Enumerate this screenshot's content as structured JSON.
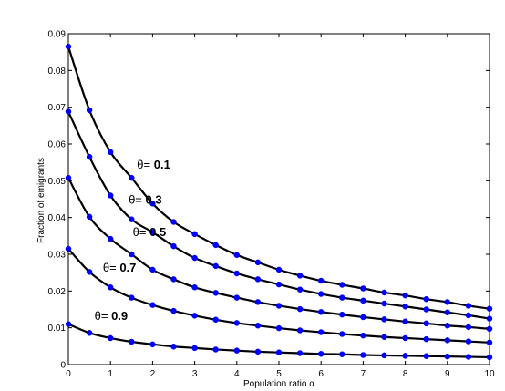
{
  "colors": {
    "curve": "#000000",
    "marker": "#0000ff",
    "axis": "#000000"
  },
  "chart_data": {
    "type": "line",
    "title": "",
    "xlabel": "Population ratio α",
    "ylabel": "Fraction of emigrants",
    "xlim": [
      0,
      10
    ],
    "ylim": [
      0,
      0.09
    ],
    "x_ticks": [
      "0",
      "1",
      "2",
      "3",
      "4",
      "5",
      "6",
      "7",
      "8",
      "9",
      "10"
    ],
    "y_ticks": [
      "0",
      "0.01",
      "0.02",
      "0.03",
      "0.04",
      "0.05",
      "0.06",
      "0.07",
      "0.08",
      "0.09"
    ],
    "grid": false,
    "legend": "none",
    "x": [
      0,
      0.5,
      1,
      1.5,
      2,
      2.5,
      3,
      3.5,
      4,
      4.5,
      5,
      5.5,
      6,
      6.5,
      7,
      7.5,
      8,
      8.5,
      9,
      9.5,
      10
    ],
    "series": [
      {
        "name": "θ= 0.1",
        "label_prefix": "θ=",
        "label_value": "0.1",
        "values": [
          0.0865,
          0.0692,
          0.0578,
          0.0508,
          0.0438,
          0.0388,
          0.0355,
          0.0325,
          0.0298,
          0.0278,
          0.0258,
          0.0242,
          0.0228,
          0.0217,
          0.0207,
          0.0196,
          0.0188,
          0.0178,
          0.017,
          0.016,
          0.0152
        ]
      },
      {
        "name": "θ= 0.3",
        "label_prefix": "θ=",
        "label_value": "0.3",
        "values": [
          0.0688,
          0.0565,
          0.046,
          0.0395,
          0.036,
          0.0322,
          0.029,
          0.0268,
          0.0248,
          0.0232,
          0.0218,
          0.0204,
          0.0192,
          0.0182,
          0.0174,
          0.0166,
          0.0158,
          0.015,
          0.0142,
          0.0134,
          0.0125
        ]
      },
      {
        "name": "θ= 0.5",
        "label_prefix": "θ=",
        "label_value": "0.5",
        "values": [
          0.0508,
          0.0402,
          0.0342,
          0.03,
          0.0258,
          0.0232,
          0.021,
          0.0195,
          0.0182,
          0.017,
          0.016,
          0.0151,
          0.0143,
          0.0136,
          0.0129,
          0.0123,
          0.0117,
          0.0112,
          0.0106,
          0.0102,
          0.0097
        ]
      },
      {
        "name": "θ= 0.7",
        "label_prefix": "θ=",
        "label_value": "0.7",
        "values": [
          0.0315,
          0.0252,
          0.021,
          0.0182,
          0.0162,
          0.0146,
          0.0133,
          0.0122,
          0.0113,
          0.0106,
          0.0099,
          0.0093,
          0.0088,
          0.0083,
          0.0079,
          0.0075,
          0.0072,
          0.0069,
          0.0066,
          0.0063,
          0.006
        ]
      },
      {
        "name": "θ= 0.9",
        "label_prefix": "θ=",
        "label_value": "0.9",
        "values": [
          0.011,
          0.0086,
          0.0072,
          0.0062,
          0.0055,
          0.0049,
          0.0045,
          0.0041,
          0.0038,
          0.0035,
          0.0033,
          0.0031,
          0.0029,
          0.0028,
          0.0026,
          0.0025,
          0.0024,
          0.0023,
          0.0022,
          0.0021,
          0.002
        ]
      }
    ]
  }
}
